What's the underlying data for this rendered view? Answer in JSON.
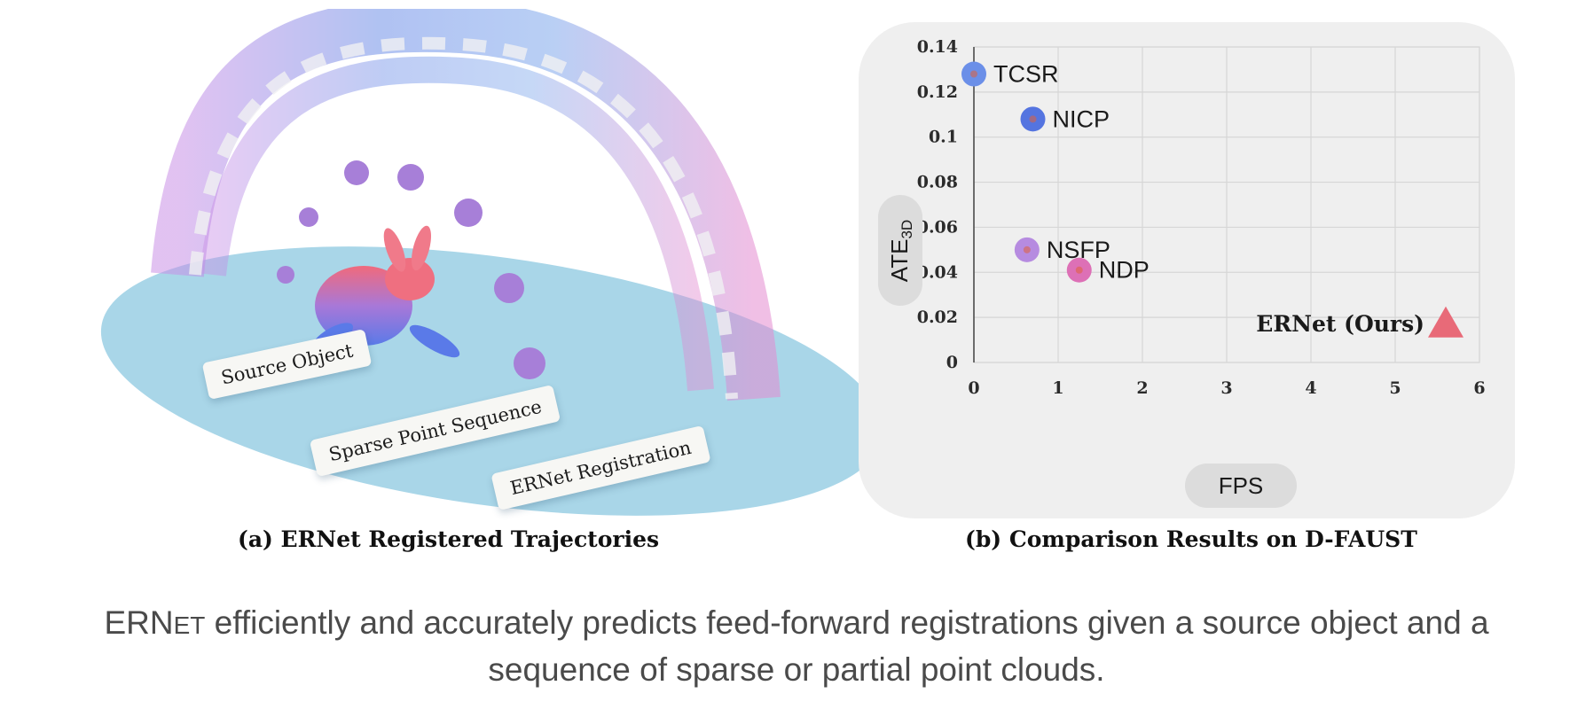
{
  "panel_a": {
    "labels": {
      "source_object": "Source Object",
      "sparse_point_sequence": "Sparse Point Sequence",
      "ernet_registration": "ERNet Registration"
    },
    "caption": "(a) ERNet Registered Trajectories"
  },
  "panel_b": {
    "caption": "(b) Comparison Results on D-FAUST"
  },
  "chart_data": {
    "type": "scatter",
    "xlabel": "FPS",
    "ylabel": "ATE3D",
    "xlim": [
      0,
      6
    ],
    "ylim": [
      0,
      0.14
    ],
    "x_ticks": [
      "0",
      "1",
      "2",
      "3",
      "4",
      "5",
      "6"
    ],
    "y_ticks": [
      "0",
      "0.02",
      "0.04",
      "0.06",
      "0.08",
      "0.1",
      "0.12",
      "0.14"
    ],
    "grid": true,
    "points": [
      {
        "label": "TCSR",
        "x": 0.0,
        "y": 0.128,
        "color": "#6b8fe8",
        "marker": "circle"
      },
      {
        "label": "NICP",
        "x": 0.7,
        "y": 0.108,
        "color": "#5474e0",
        "marker": "circle"
      },
      {
        "label": "NSFP",
        "x": 0.63,
        "y": 0.05,
        "color": "#b68be0",
        "marker": "circle"
      },
      {
        "label": "NDP",
        "x": 1.25,
        "y": 0.041,
        "color": "#dd70b6",
        "marker": "circle"
      },
      {
        "label": "ERNet (Ours)",
        "x": 5.6,
        "y": 0.017,
        "color": "#e86a78",
        "marker": "triangle"
      }
    ]
  },
  "bottom_caption": {
    "name_big": "ERN",
    "name_small": "ET",
    "line1": " efficiently and accurately predicts feed-forward registrations given a source object and a",
    "line2": "sequence of sparse or partial point clouds."
  }
}
